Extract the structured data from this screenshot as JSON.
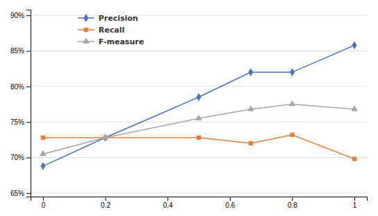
{
  "chart_data": {
    "type": "line",
    "x": [
      0,
      0.2,
      0.5,
      0.667,
      0.8,
      1
    ],
    "series": [
      {
        "name": "Precision",
        "color": "#4472C4",
        "marker": "diamond",
        "values": [
          0.688,
          0.728,
          0.785,
          0.82,
          0.82,
          0.858
        ]
      },
      {
        "name": "Recall",
        "color": "#ED7D31",
        "marker": "square",
        "values": [
          0.728,
          0.728,
          0.728,
          0.72,
          0.732,
          0.698
        ]
      },
      {
        "name": "F-measure",
        "color": "#A5A5A5",
        "marker": "triangle",
        "values": [
          0.705,
          0.728,
          0.755,
          0.768,
          0.775,
          0.768
        ]
      }
    ],
    "xlim": [
      -0.04,
      1.04
    ],
    "xticks": [
      0,
      0.2,
      0.4,
      0.6,
      0.8,
      1
    ],
    "ylim": [
      0.645,
      0.908
    ],
    "yticks": [
      {
        "value": 0.65,
        "label": "65%"
      },
      {
        "value": 0.7,
        "label": "70%"
      },
      {
        "value": 0.75,
        "label": "75%"
      },
      {
        "value": 0.8,
        "label": "80%"
      },
      {
        "value": 0.85,
        "label": "85%"
      },
      {
        "value": 0.9,
        "label": "90%"
      }
    ],
    "grid": "y",
    "legend": "upper left"
  }
}
